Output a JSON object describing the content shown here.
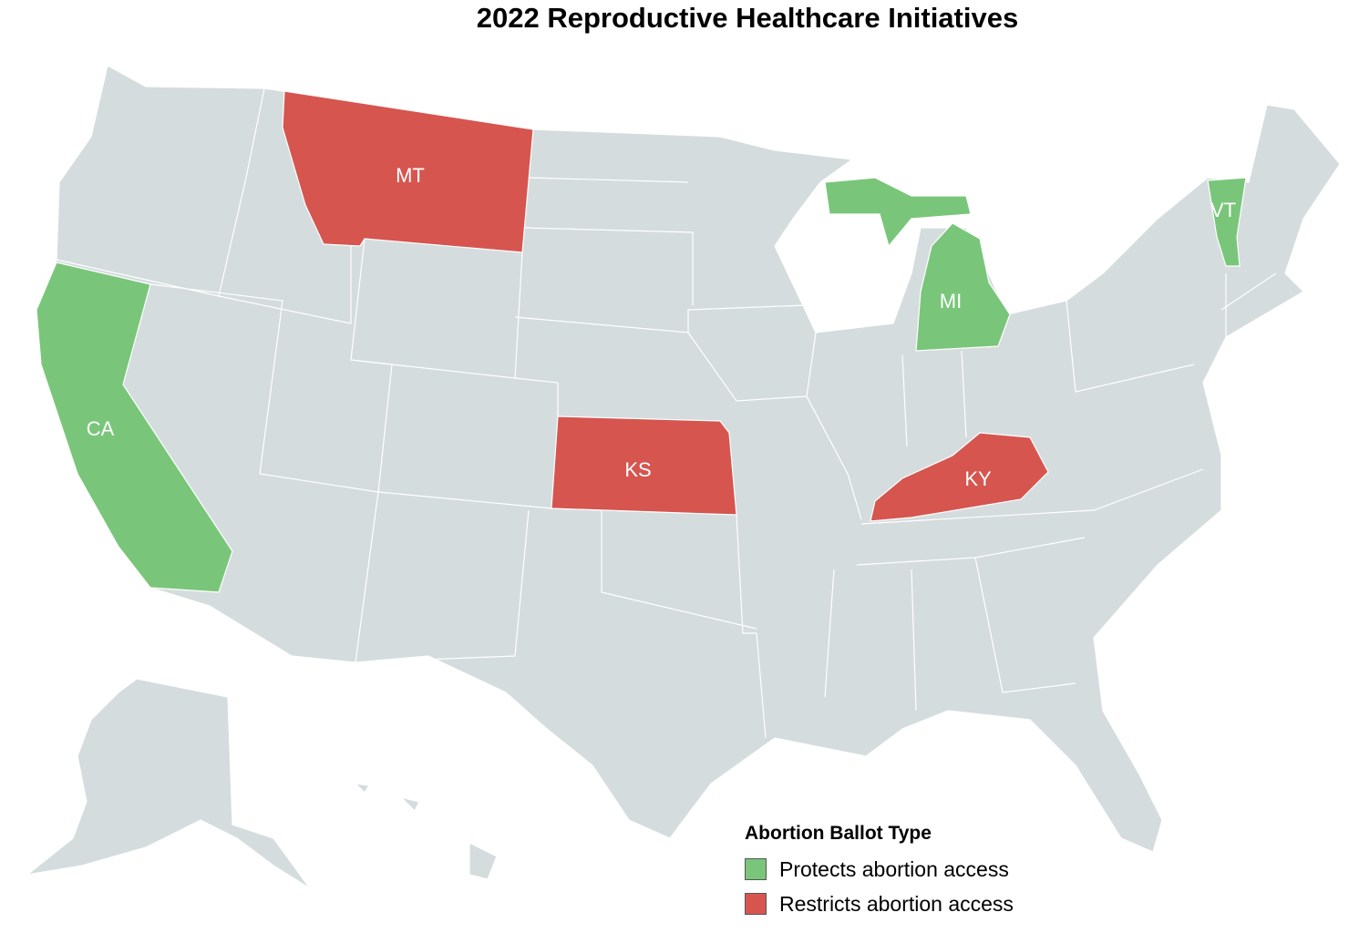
{
  "title": "2022 Reproductive Healthcare Initiatives",
  "legend": {
    "title": "Abortion Ballot Type",
    "items": [
      {
        "label": "Protects abortion access",
        "color": "#79c67a"
      },
      {
        "label": "Restricts abortion access",
        "color": "#d6554f"
      }
    ]
  },
  "colors": {
    "default_state": "#d4dcde",
    "border": "#ffffff",
    "label": "#ffffff"
  },
  "states": [
    {
      "abbr": "CA",
      "category": "Protects abortion access"
    },
    {
      "abbr": "MI",
      "category": "Protects abortion access"
    },
    {
      "abbr": "VT",
      "category": "Protects abortion access"
    },
    {
      "abbr": "MT",
      "category": "Restricts abortion access"
    },
    {
      "abbr": "KS",
      "category": "Restricts abortion access"
    },
    {
      "abbr": "KY",
      "category": "Restricts abortion access"
    }
  ]
}
